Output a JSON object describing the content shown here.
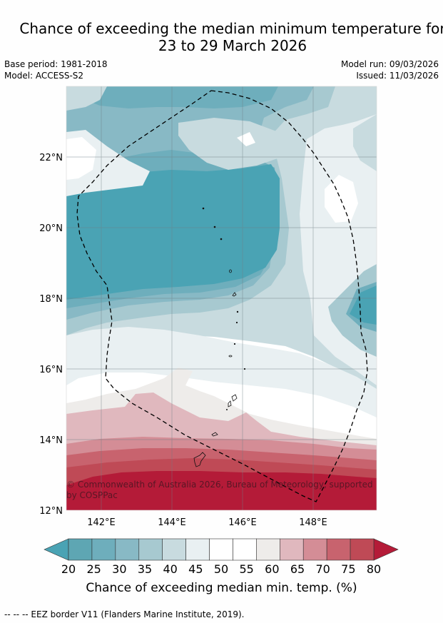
{
  "title": {
    "line1": "Chance of exceeding the median minimum temperature for",
    "line2": "23 to 29 March 2026"
  },
  "meta": {
    "base_period": "Base period: 1981-2018",
    "model": "Model: ACCESS-S2",
    "model_run": "Model run: 09/03/2026",
    "issued": "Issued: 11/03/2026"
  },
  "map": {
    "lat_labels": [
      "22°N",
      "20°N",
      "18°N",
      "16°N",
      "14°N",
      "12°N"
    ],
    "lat_values": [
      22,
      20,
      18,
      16,
      14,
      12
    ],
    "lon_labels": [
      "142°E",
      "144°E",
      "146°E",
      "148°E"
    ],
    "lon_values": [
      142,
      144,
      146,
      148
    ],
    "copyright": "© Commonwealth of Australia 2026, Bureau of Meteorology, supported by COSPPac"
  },
  "colorbar": {
    "ticks": [
      "20",
      "25",
      "30",
      "35",
      "40",
      "45",
      "50",
      "55",
      "60",
      "65",
      "70",
      "75",
      "80"
    ],
    "colors": [
      "#5ea6b3",
      "#6eaebc",
      "#88b9c5",
      "#a7c9d0",
      "#c8dbdf",
      "#e9f0f2",
      "#ffffff",
      "#ffffff",
      "#eeecea",
      "#e0b8be",
      "#d48d96",
      "#c8636e",
      "#bf4a56"
    ],
    "under_color": "#4aa3b4",
    "over_color": "#b41b38",
    "title": "Chance of exceeding median min. temp. (%)"
  },
  "footer": {
    "legend": "--  --  -- EEZ border V11 (Flanders Marine Institute, 2019)."
  }
}
